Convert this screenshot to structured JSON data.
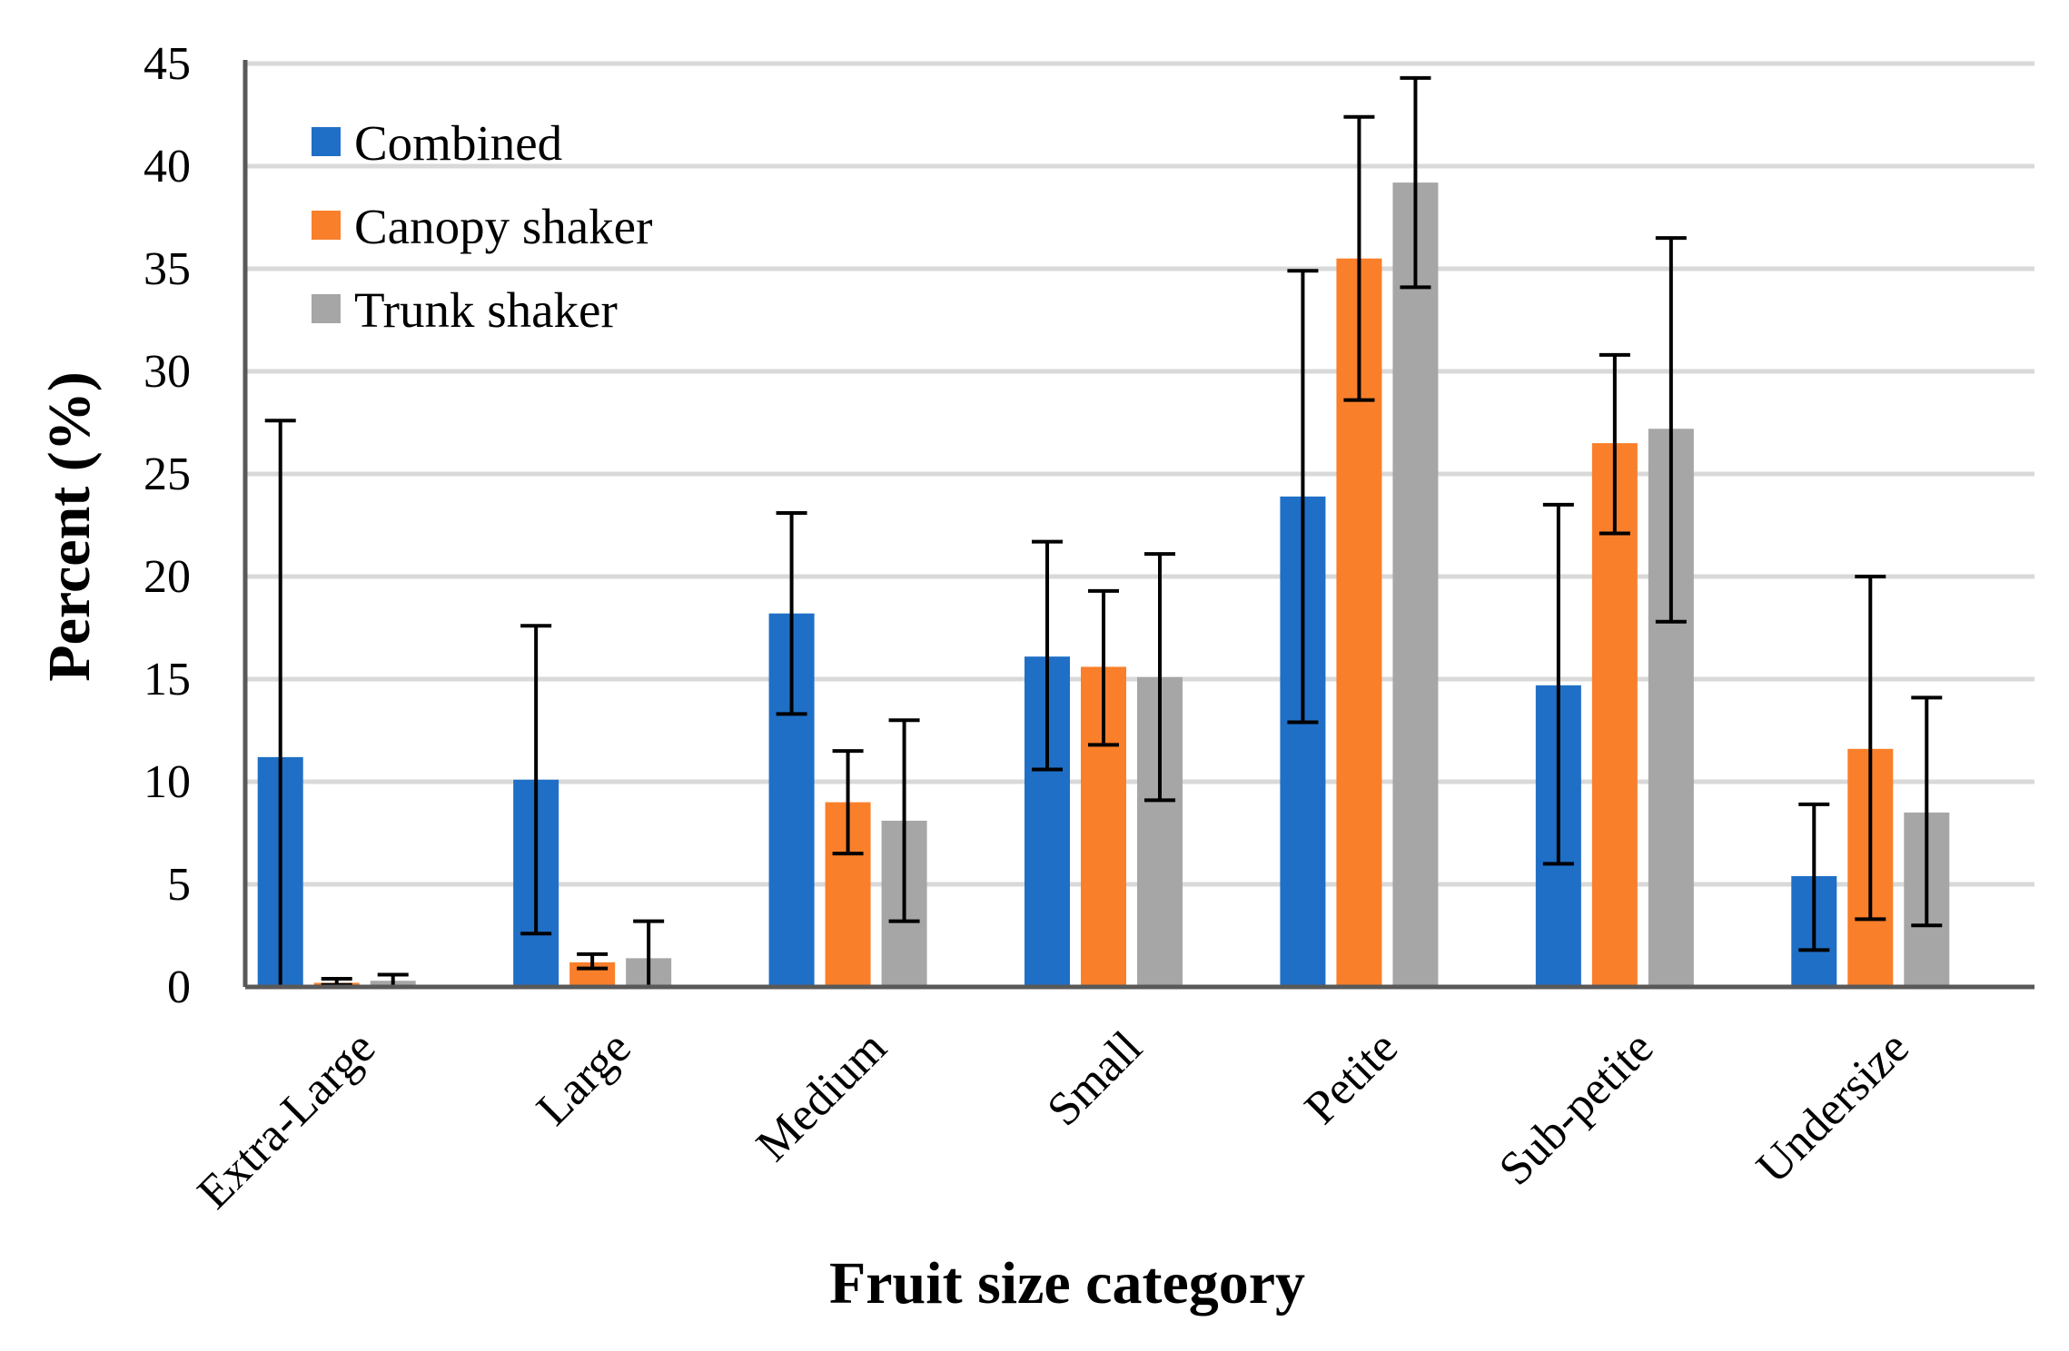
{
  "chart_data": {
    "type": "bar",
    "title": "",
    "xlabel": "Fruit size category",
    "ylabel": "Percent (%)",
    "ylim": [
      0,
      45
    ],
    "yticks": [
      0,
      5,
      10,
      15,
      20,
      25,
      30,
      35,
      40,
      45
    ],
    "grid": true,
    "legend_position": "top-left",
    "categories": [
      "Extra-Large",
      "Large",
      "Medium",
      "Small",
      "Petite",
      "Sub-petite",
      "Undersize"
    ],
    "series": [
      {
        "name": "Combined",
        "color": "#1f6fc6",
        "values": [
          11.2,
          10.1,
          18.2,
          16.1,
          23.9,
          14.7,
          5.4
        ],
        "err_low": [
          0,
          2.6,
          13.3,
          10.6,
          12.9,
          6.0,
          1.8
        ],
        "err_high": [
          27.6,
          17.6,
          23.1,
          21.7,
          34.9,
          23.5,
          8.9
        ]
      },
      {
        "name": "Canopy shaker",
        "color": "#fa7f2a",
        "values": [
          0.2,
          1.2,
          9.0,
          15.6,
          35.5,
          26.5,
          11.6
        ],
        "err_low": [
          0.1,
          0.9,
          6.5,
          11.8,
          28.6,
          22.1,
          3.3
        ],
        "err_high": [
          0.4,
          1.6,
          11.5,
          19.3,
          42.4,
          30.8,
          20.0
        ]
      },
      {
        "name": "Trunk shaker",
        "color": "#a6a6a6",
        "values": [
          0.3,
          1.4,
          8.1,
          15.1,
          39.2,
          27.2,
          8.5
        ],
        "err_low": [
          0,
          0,
          3.2,
          9.1,
          34.1,
          17.8,
          3.0
        ],
        "err_high": [
          0.6,
          3.2,
          13.0,
          21.1,
          44.3,
          36.5,
          14.1
        ]
      }
    ]
  }
}
